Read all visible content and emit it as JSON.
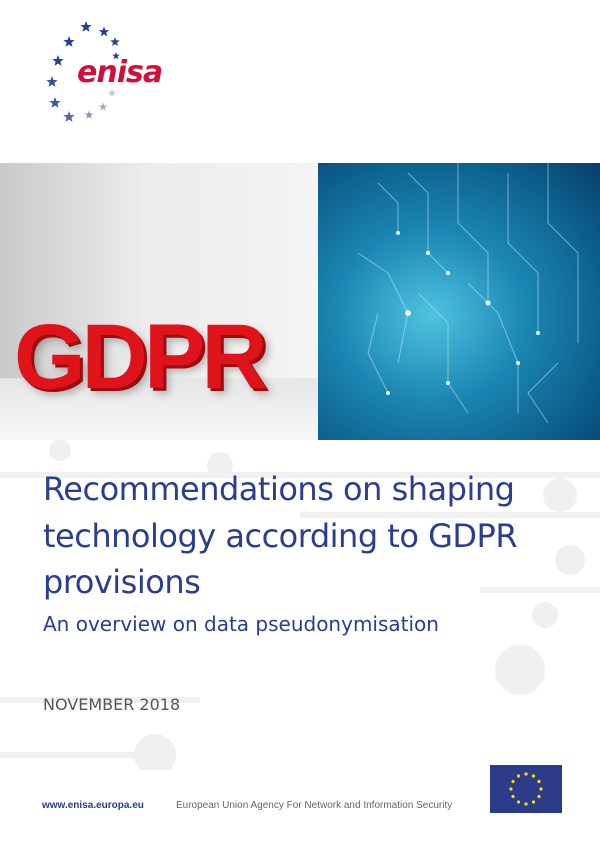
{
  "logo": {
    "text": "enisa",
    "star_color": "#2b3f8c",
    "text_color": "#d0103a"
  },
  "cover_image": {
    "left_text": "GDPR"
  },
  "title": {
    "lines": [
      "Recommendations on shaping",
      "technology according to GDPR",
      "provisions"
    ],
    "subtitle": "An overview on data pseudonymisation",
    "color": "#2a3d8f"
  },
  "date": "NOVEMBER 2018",
  "footer": {
    "url": "www.enisa.europa.eu",
    "agency": "European Union Agency For Network and Information Security",
    "flag_icon": "eu-flag-icon"
  }
}
